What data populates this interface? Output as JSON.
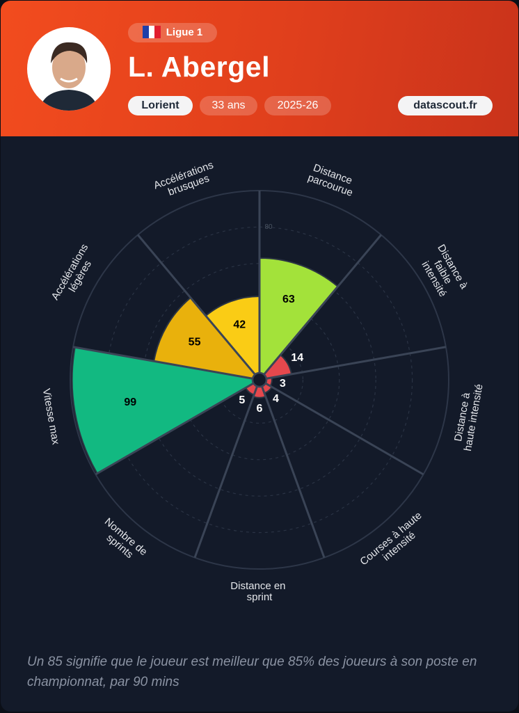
{
  "header": {
    "league": "Ligue 1",
    "name": "L. Abergel",
    "club": "Lorient",
    "age": "33 ans",
    "season": "2025-26",
    "site": "datascout.fr"
  },
  "chart_data": {
    "type": "polar_bar",
    "categories": [
      "Distance parcourue",
      "Distance à faible intensité",
      "Distance à haute intensité",
      "Courses à haute intensité",
      "Distance en sprint",
      "Nombre de sprints",
      "Vitesse max",
      "Accélérations légères",
      "Accélérations brusques"
    ],
    "values": [
      63,
      14,
      3,
      4,
      6,
      5,
      99,
      55,
      42
    ],
    "colors": [
      "#a3e23a",
      "#e5484d",
      "#e5484d",
      "#e5484d",
      "#e5484d",
      "#e5484d",
      "#12b981",
      "#e9b10c",
      "#facc15"
    ],
    "rlim": [
      0,
      100
    ],
    "rticks": [
      20,
      40,
      60,
      80
    ]
  },
  "footnote": "Un 85 signifie que le joueur est meilleur que 85% des joueurs à son poste en championnat, par 90 mins"
}
